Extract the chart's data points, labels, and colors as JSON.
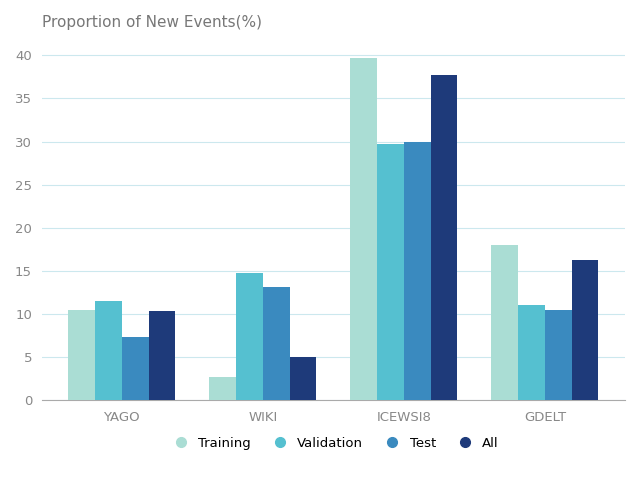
{
  "title": "Proportion of New Events(%)",
  "categories": [
    "YAGO",
    "WIKI",
    "ICEWSI8",
    "GDELT"
  ],
  "series": {
    "Training": [
      10.5,
      2.7,
      39.7,
      18.0
    ],
    "Validation": [
      11.5,
      14.8,
      29.7,
      11.0
    ],
    "Test": [
      7.4,
      13.1,
      30.0,
      10.5
    ],
    "All": [
      10.3,
      5.0,
      37.7,
      16.3
    ]
  },
  "colors": {
    "Training": "#aaddd4",
    "Validation": "#55c0d0",
    "Test": "#3a8abf",
    "All": "#1e3a7a"
  },
  "ylim": [
    0,
    42
  ],
  "yticks": [
    0,
    5,
    10,
    15,
    20,
    25,
    30,
    35,
    40
  ],
  "bar_width": 0.19,
  "background_color": "#ffffff",
  "grid_color": "#cce8ee",
  "axis_color": "#aaaaaa",
  "title_fontsize": 11,
  "tick_fontsize": 9.5,
  "legend_fontsize": 9.5,
  "tick_color": "#888888"
}
